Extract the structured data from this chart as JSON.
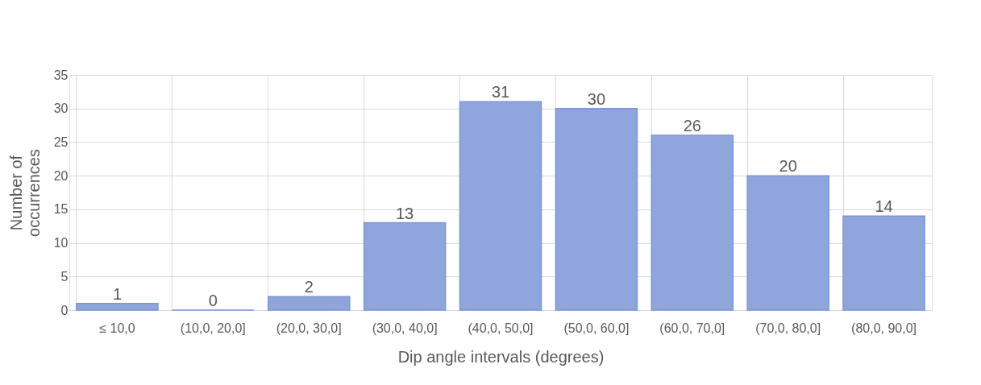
{
  "chart_data": {
    "type": "bar",
    "categories": [
      "≤ 10,0",
      "(10,0, 20,0]",
      "(20,0, 30,0]",
      "(30,0, 40,0]",
      "(40,0, 50,0]",
      "(50,0, 60,0]",
      "(60,0, 70,0]",
      "(70,0, 80,0]",
      "(80,0, 90,0]"
    ],
    "values": [
      1,
      0,
      2,
      13,
      31,
      30,
      26,
      20,
      14
    ],
    "color": "#8fa5dc",
    "xlabel": "Dip angle intervals (degrees)",
    "ylabel": "Number of occurrences",
    "ylim": [
      0,
      35
    ],
    "yticks": [
      0,
      5,
      10,
      15,
      20,
      25,
      30,
      35
    ],
    "grid": true,
    "data_labels": true
  }
}
